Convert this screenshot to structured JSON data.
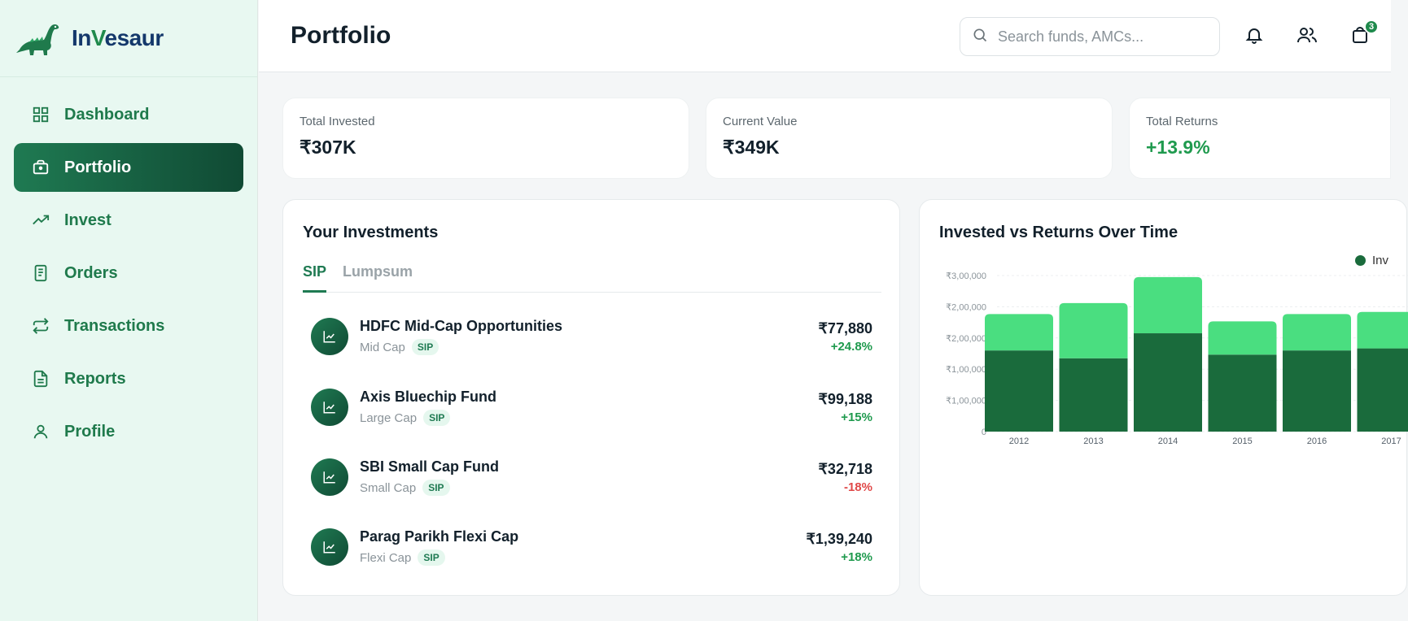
{
  "brand": {
    "name_prefix": "In",
    "name_v": "V",
    "name_suffix": "esaur"
  },
  "sidebar": {
    "items": [
      {
        "label": "Dashboard",
        "icon": "grid-icon"
      },
      {
        "label": "Portfolio",
        "icon": "briefcase-icon",
        "active": true
      },
      {
        "label": "Invest",
        "icon": "trending-up-icon"
      },
      {
        "label": "Orders",
        "icon": "receipt-icon"
      },
      {
        "label": "Transactions",
        "icon": "repeat-icon"
      },
      {
        "label": "Reports",
        "icon": "file-text-icon"
      },
      {
        "label": "Profile",
        "icon": "user-icon"
      }
    ]
  },
  "header": {
    "title": "Portfolio",
    "search_placeholder": "Search funds, AMCs...",
    "cart_count": "3"
  },
  "stats": [
    {
      "label": "Total Invested",
      "value": "₹307K"
    },
    {
      "label": "Current Value",
      "value": "₹349K"
    },
    {
      "label": "Total Returns",
      "value": "+13.9%"
    }
  ],
  "investments": {
    "title": "Your Investments",
    "tabs": [
      "SIP",
      "Lumpsum"
    ],
    "funds": [
      {
        "name": "HDFC Mid-Cap Opportunities",
        "category": "Mid Cap",
        "type": "SIP",
        "amount": "₹77,880",
        "return": "+24.8%"
      },
      {
        "name": "Axis Bluechip Fund",
        "category": "Large Cap",
        "type": "SIP",
        "amount": "₹99,188",
        "return": "+15%"
      },
      {
        "name": "SBI Small Cap Fund",
        "category": "Small Cap",
        "type": "SIP",
        "amount": "₹32,718",
        "return": "-18%"
      },
      {
        "name": "Parag Parikh Flexi Cap",
        "category": "Flexi Cap",
        "type": "SIP",
        "amount": "₹1,39,240",
        "return": "+18%"
      }
    ]
  },
  "chart_card": {
    "title": "Invested vs Returns Over Time",
    "legend_fragment": "Inv"
  },
  "chart_data": {
    "type": "bar",
    "stacked": true,
    "title": "Invested vs Returns Over Time",
    "categories": [
      "2012",
      "2013",
      "2014",
      "2015",
      "2016",
      "2017"
    ],
    "y_tick_labels": [
      "0",
      "₹1,00,000",
      "₹1,00,000",
      "₹2,00,000",
      "₹2,00,000",
      "₹3,00,000"
    ],
    "ylim": [
      0,
      300000
    ],
    "series": [
      {
        "values": [
          156000,
          141000,
          189000,
          148000,
          156000,
          160000
        ],
        "color": "#1a6b3c"
      },
      {
        "values": [
          70000,
          106000,
          108000,
          64000,
          70000,
          70000
        ],
        "color": "#4ade80"
      }
    ],
    "grid": true,
    "legend_position": "top-right"
  },
  "colors": {
    "accent": "#1f7a52",
    "positive": "#1f9a4e",
    "negative": "#e04848"
  }
}
